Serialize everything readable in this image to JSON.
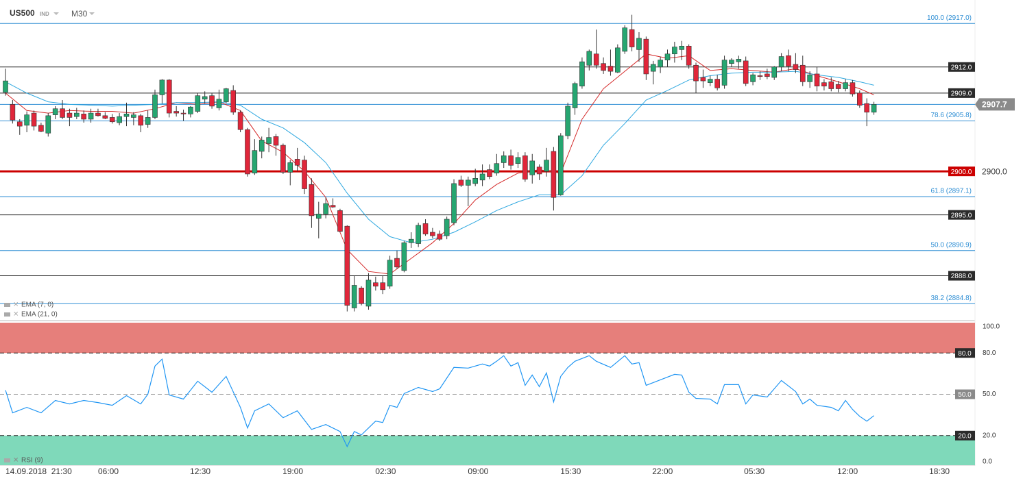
{
  "header": {
    "symbol": "US500",
    "kind": "IND",
    "timeframe": "M30"
  },
  "chart_data": {
    "type": "candlestick",
    "xlim": [
      -0.77,
      136.2
    ],
    "xticks": [
      {
        "value": 0,
        "label": "14.09.2018  21:30"
      },
      {
        "value": 14.45,
        "label": "06:00"
      },
      {
        "value": 27.36,
        "label": "12:30"
      },
      {
        "value": 40.37,
        "label": "19:00"
      },
      {
        "value": 53.4,
        "label": "02:30"
      },
      {
        "value": 66.4,
        "label": "09:00"
      },
      {
        "value": 79.4,
        "label": "15:30"
      },
      {
        "value": 92.3,
        "label": "22:00"
      },
      {
        "value": 105.2,
        "label": "05:30"
      },
      {
        "value": 118.3,
        "label": "12:00"
      },
      {
        "value": 131.2,
        "label": "18:30"
      }
    ],
    "ylim": [
      2883,
      2919.7
    ],
    "yticks": [
      {
        "value": 2900,
        "label": "2900.0"
      }
    ],
    "up_color": "#26a671",
    "down_color": "#e0263a",
    "last": 2907.7,
    "levels": [
      {
        "value": 2917,
        "label": "100.0 (2917.0)",
        "color": "#2e8ed4",
        "boxed": false
      },
      {
        "value": 2912,
        "label": "2912.0",
        "color": "#222222",
        "boxed": true
      },
      {
        "value": 2909,
        "label": "2909.0",
        "color": "#222222",
        "boxed": true
      },
      {
        "value": 2905.8,
        "label": "78.6 (2905.8)",
        "color": "#2e8ed4",
        "boxed": false
      },
      {
        "value": 2900,
        "label": "2900.0",
        "color": "#cc0000",
        "boxed": true
      },
      {
        "value": 2897.1,
        "label": "61.8 (2897.1)",
        "color": "#2e8ed4",
        "boxed": false
      },
      {
        "value": 2895,
        "label": "2895.0",
        "color": "#222222",
        "boxed": true
      },
      {
        "value": 2890.9,
        "label": "50.0 (2890.9)",
        "color": "#2e8ed4",
        "boxed": false
      },
      {
        "value": 2888,
        "label": "2888.0",
        "color": "#222222",
        "boxed": true
      },
      {
        "value": 2884.8,
        "label": "38.2 (2884.8)",
        "color": "#2e8ed4",
        "boxed": false
      }
    ],
    "candles": [
      [
        2909.1,
        2911.8,
        2908.7,
        2910.4
      ],
      [
        2907.7,
        2908.2,
        2905.5,
        2905.9
      ],
      [
        2905.7,
        2906,
        2904.2,
        2905.2
      ],
      [
        2905.3,
        2906.9,
        2904.5,
        2906.5
      ],
      [
        2906.7,
        2907,
        2904.7,
        2905.2
      ],
      [
        2905.3,
        2905.6,
        2904.5,
        2904.6
      ],
      [
        2904.4,
        2906.7,
        2904,
        2906.4
      ],
      [
        2906.5,
        2907.5,
        2906,
        2907.2
      ],
      [
        2907.2,
        2908.2,
        2906,
        2906.2
      ],
      [
        2906.7,
        2907.2,
        2905.2,
        2906.2
      ],
      [
        2906.3,
        2907.3,
        2906,
        2906.7
      ],
      [
        2906.6,
        2907,
        2905.6,
        2906
      ],
      [
        2906,
        2907.2,
        2905.6,
        2906.7
      ],
      [
        2906.7,
        2907.2,
        2906.3,
        2906.4
      ],
      [
        2906.4,
        2906.8,
        2906,
        2906.1
      ],
      [
        2906.2,
        2906.6,
        2905.5,
        2905.7
      ],
      [
        2905.6,
        2906.7,
        2905.3,
        2906.3
      ],
      [
        2906.3,
        2907.9,
        2905.2,
        2906.6
      ],
      [
        2906.2,
        2906.8,
        2905.3,
        2906.5
      ],
      [
        2906.4,
        2906.6,
        2904.5,
        2905.3
      ],
      [
        2905.4,
        2907,
        2905,
        2906.2
      ],
      [
        2906.2,
        2909.4,
        2906,
        2908.8
      ],
      [
        2908.8,
        2910.6,
        2907.8,
        2910.5
      ],
      [
        2910.5,
        2910.6,
        2906.2,
        2906.7
      ],
      [
        2906.9,
        2907.5,
        2906.3,
        2906.7
      ],
      [
        2906.7,
        2907.1,
        2905.8,
        2906.6
      ],
      [
        2906.6,
        2907.5,
        2906.2,
        2907.4
      ],
      [
        2906.9,
        2909,
        2906.7,
        2908.7
      ],
      [
        2908.3,
        2909.2,
        2907.8,
        2908.6
      ],
      [
        2908.7,
        2909,
        2907.2,
        2907.5
      ],
      [
        2907.3,
        2909.4,
        2907,
        2908.3
      ],
      [
        2908,
        2909.6,
        2907.8,
        2909.5
      ],
      [
        2909.3,
        2909.9,
        2906.5,
        2906.8
      ],
      [
        2906.8,
        2907,
        2904.5,
        2904.8
      ],
      [
        2904.8,
        2905,
        2899.4,
        2899.7
      ],
      [
        2899.8,
        2903.7,
        2899.6,
        2902.4
      ],
      [
        2902.3,
        2904,
        2901.5,
        2903.6
      ],
      [
        2903.2,
        2905,
        2902.2,
        2903.9
      ],
      [
        2904,
        2904.3,
        2901.8,
        2903
      ],
      [
        2903,
        2903.2,
        2899.7,
        2899.9
      ],
      [
        2899.9,
        2901.3,
        2898.4,
        2901
      ],
      [
        2901.4,
        2902.7,
        2900,
        2900.7
      ],
      [
        2901.3,
        2901.8,
        2897.4,
        2898
      ],
      [
        2898.5,
        2899.2,
        2893.5,
        2894.9
      ],
      [
        2894.6,
        2896.5,
        2892.3,
        2895.1
      ],
      [
        2895.1,
        2897,
        2894.6,
        2896.3
      ],
      [
        2896.1,
        2896.9,
        2895.8,
        2895.9
      ],
      [
        2895.5,
        2895.7,
        2893,
        2893.1
      ],
      [
        2893.7,
        2893.8,
        2883.9,
        2884.6
      ],
      [
        2884.3,
        2888,
        2883.9,
        2886.9
      ],
      [
        2886.6,
        2886.8,
        2884.6,
        2884.8
      ],
      [
        2884.5,
        2888.3,
        2884.1,
        2887.5
      ],
      [
        2887.2,
        2887.9,
        2886.3,
        2886.8
      ],
      [
        2887.2,
        2888,
        2885.9,
        2886.4
      ],
      [
        2886.8,
        2890.3,
        2886.5,
        2889.8
      ],
      [
        2890,
        2890.9,
        2888.8,
        2889
      ],
      [
        2888.6,
        2892,
        2888.4,
        2891.8
      ],
      [
        2891.8,
        2893,
        2891.2,
        2892.2
      ],
      [
        2891.7,
        2894.1,
        2891.3,
        2893.8
      ],
      [
        2894,
        2894.5,
        2892.6,
        2892.8
      ],
      [
        2893,
        2893.5,
        2892.3,
        2892.6
      ],
      [
        2892.8,
        2893.2,
        2892,
        2892.2
      ],
      [
        2892.6,
        2894.8,
        2892.2,
        2894.5
      ],
      [
        2894.1,
        2899.1,
        2893.8,
        2898.6
      ],
      [
        2899,
        2899.5,
        2898.2,
        2898.4
      ],
      [
        2898.4,
        2899.4,
        2896,
        2899
      ],
      [
        2898.6,
        2900.3,
        2898.3,
        2899.2
      ],
      [
        2899,
        2900.8,
        2898.3,
        2899.7
      ],
      [
        2900.2,
        2900.8,
        2899.1,
        2899.4
      ],
      [
        2899.8,
        2902,
        2899.5,
        2900.9
      ],
      [
        2901,
        2902.3,
        2900.4,
        2901.8
      ],
      [
        2901.8,
        2902.5,
        2900.2,
        2900.7
      ],
      [
        2900.9,
        2902.2,
        2900.4,
        2901.6
      ],
      [
        2901.8,
        2902.2,
        2898.8,
        2899.1
      ],
      [
        2899.6,
        2902,
        2898.6,
        2901.2
      ],
      [
        2900.5,
        2900.8,
        2899,
        2899.7
      ],
      [
        2900,
        2902.7,
        2899.4,
        2901.3
      ],
      [
        2902.3,
        2902.8,
        2895.5,
        2897
      ],
      [
        2897.3,
        2904.4,
        2897.2,
        2904.1
      ],
      [
        2904.1,
        2907.9,
        2903.7,
        2907.5
      ],
      [
        2907.3,
        2910.3,
        2906.5,
        2910.1
      ],
      [
        2909.8,
        2913.1,
        2909.5,
        2912.6
      ],
      [
        2912.2,
        2914,
        2911.6,
        2913.8
      ],
      [
        2913.5,
        2916.3,
        2911.8,
        2912.2
      ],
      [
        2912.4,
        2913.1,
        2911.2,
        2911.6
      ],
      [
        2912.1,
        2914,
        2911,
        2911.5
      ],
      [
        2911.4,
        2914.6,
        2911.3,
        2914.2
      ],
      [
        2913.8,
        2916.8,
        2913.5,
        2916.5
      ],
      [
        2916.3,
        2918,
        2913.8,
        2914.3
      ],
      [
        2914,
        2916,
        2912.6,
        2915.3
      ],
      [
        2915.2,
        2915.5,
        2910.5,
        2911.2
      ],
      [
        2911.5,
        2912.7,
        2910,
        2912.3
      ],
      [
        2912,
        2913.2,
        2911.3,
        2912.8
      ],
      [
        2912.8,
        2914,
        2912,
        2913.5
      ],
      [
        2913.5,
        2914.9,
        2912.5,
        2914.3
      ],
      [
        2914,
        2915,
        2912.8,
        2914.4
      ],
      [
        2914.4,
        2914.6,
        2911.8,
        2912.2
      ],
      [
        2912.2,
        2912.5,
        2909,
        2910.4
      ],
      [
        2910.8,
        2911.7,
        2909.6,
        2910.4
      ],
      [
        2910.2,
        2911,
        2909.8,
        2910.6
      ],
      [
        2910.6,
        2911.1,
        2909.3,
        2909.6
      ],
      [
        2909.9,
        2913.3,
        2909.5,
        2912.8
      ],
      [
        2912.4,
        2913,
        2912,
        2912.8
      ],
      [
        2912.6,
        2913.3,
        2911.8,
        2912.9
      ],
      [
        2912.7,
        2913.2,
        2909.8,
        2910.1
      ],
      [
        2910.3,
        2911.3,
        2909.9,
        2911.1
      ],
      [
        2911,
        2911.5,
        2910.5,
        2910.9
      ],
      [
        2911.2,
        2911.8,
        2910.6,
        2910.9
      ],
      [
        2910.8,
        2912.1,
        2910.5,
        2912
      ],
      [
        2912,
        2913.6,
        2911.5,
        2913.2
      ],
      [
        2913.3,
        2914,
        2911.5,
        2912.1
      ],
      [
        2912.3,
        2913.6,
        2911.3,
        2911.7
      ],
      [
        2912.2,
        2913.3,
        2909.8,
        2910.3
      ],
      [
        2910.3,
        2911.5,
        2909.6,
        2911.1
      ],
      [
        2911.2,
        2912,
        2909.2,
        2909.8
      ],
      [
        2910.2,
        2910.6,
        2909.3,
        2909.8
      ],
      [
        2910.3,
        2910.8,
        2909.2,
        2909.5
      ],
      [
        2910,
        2910.4,
        2909.1,
        2909.5
      ],
      [
        2909.5,
        2910.6,
        2909.2,
        2910.2
      ],
      [
        2910.2,
        2910.5,
        2908.6,
        2908.9
      ],
      [
        2909,
        2909.3,
        2907.3,
        2907.6
      ],
      [
        2907.8,
        2908.4,
        2905.2,
        2906.8
      ],
      [
        2906.8,
        2908,
        2906.5,
        2907.7
      ]
    ],
    "indicators": [
      {
        "name": "EMA (7, 0)",
        "color": "#d42a2a",
        "x": [
          0,
          3,
          6,
          9,
          12,
          15,
          18,
          21,
          24,
          27,
          30,
          33,
          36,
          39,
          42,
          45,
          48,
          51,
          54,
          57,
          60,
          63,
          66,
          69,
          72,
          75,
          78,
          81,
          84,
          87,
          90,
          93,
          96,
          99,
          102,
          105,
          108,
          111,
          114,
          117,
          120,
          122
        ],
        "values": [
          2909,
          2907,
          2906.7,
          2907,
          2906.9,
          2906.9,
          2906.7,
          2907.2,
          2907.9,
          2907.7,
          2908,
          2907,
          2903.5,
          2902.2,
          2900,
          2897,
          2891,
          2888.5,
          2888.2,
          2890,
          2891.8,
          2894,
          2896.7,
          2898.5,
          2899.8,
          2900.2,
          2899.8,
          2906,
          2909.5,
          2911.5,
          2913.5,
          2913,
          2913.3,
          2911.6,
          2911.8,
          2911.6,
          2911.4,
          2911.8,
          2911,
          2910.3,
          2909.5,
          2908.8
        ]
      },
      {
        "name": "EMA (21, 0)",
        "color": "#2fa8e0",
        "x": [
          0,
          3,
          6,
          9,
          12,
          15,
          18,
          21,
          24,
          27,
          30,
          33,
          36,
          39,
          42,
          45,
          48,
          51,
          54,
          57,
          60,
          63,
          66,
          69,
          72,
          75,
          78,
          81,
          84,
          87,
          90,
          93,
          96,
          99,
          102,
          105,
          108,
          111,
          114,
          117,
          120,
          122
        ],
        "values": [
          2910.3,
          2909,
          2908,
          2907.7,
          2907.6,
          2907.5,
          2907.6,
          2907.7,
          2907.9,
          2907.9,
          2908,
          2907.6,
          2906,
          2905,
          2903.3,
          2901,
          2897.5,
          2894.5,
          2892.5,
          2891.8,
          2892.2,
          2893,
          2894.2,
          2895.5,
          2896.5,
          2897.3,
          2897.3,
          2899.5,
          2903,
          2905.5,
          2908.2,
          2909.3,
          2910.5,
          2911,
          2911.3,
          2911.4,
          2911.4,
          2911.5,
          2911.1,
          2910.8,
          2910.3,
          2909.9
        ]
      }
    ],
    "rsi": {
      "name": "RSI (9)",
      "color": "#2196f3",
      "ylim": [
        0,
        100
      ],
      "yticks": [
        {
          "value": 100,
          "label": "100.0"
        },
        {
          "value": 80,
          "label": "80.0"
        },
        {
          "value": 50,
          "label": "50.0"
        },
        {
          "value": 20,
          "label": "20.0"
        },
        {
          "value": 0,
          "label": "0.0"
        }
      ],
      "bands": [
        {
          "from": 80,
          "to": 100,
          "color": "#e67f7b"
        },
        {
          "from": 0,
          "to": 20,
          "color": "#7fd9ba"
        }
      ],
      "x": [
        0,
        1,
        3,
        5,
        7,
        9,
        11,
        13,
        15,
        17,
        19,
        20,
        21,
        22,
        23,
        25,
        27,
        29,
        31,
        33,
        34,
        35,
        37,
        39,
        41,
        43,
        45,
        47,
        48,
        49,
        50,
        52,
        53,
        54,
        55,
        56,
        58,
        60,
        61,
        63,
        65,
        67,
        68,
        69,
        70,
        71,
        72,
        73,
        74,
        75,
        76,
        77,
        78,
        79,
        80,
        82,
        83,
        85,
        87,
        88,
        89,
        90,
        92,
        94,
        95,
        96,
        97,
        99,
        100,
        101,
        103,
        104,
        105,
        107,
        109,
        111,
        112,
        113,
        114,
        116,
        117,
        118,
        119,
        120,
        121,
        122
      ],
      "values": [
        53,
        36.5,
        40.5,
        36.5,
        45.5,
        43,
        45.5,
        44,
        42,
        49,
        43,
        50,
        70.5,
        75.5,
        49.5,
        46.5,
        59.5,
        51.5,
        63,
        40.5,
        25.5,
        38,
        43,
        33,
        38,
        24.5,
        28,
        23,
        12,
        23,
        20.5,
        30.5,
        29.5,
        42,
        40.5,
        50.5,
        55,
        52,
        54,
        69.5,
        69,
        72,
        70.5,
        74,
        78,
        70.5,
        73,
        56.5,
        64,
        55.5,
        65.5,
        44.5,
        63,
        69.5,
        74,
        78,
        74,
        69.5,
        78,
        72,
        73,
        56.5,
        60.5,
        64.5,
        64,
        51.5,
        47,
        46.5,
        43,
        57,
        57,
        43,
        49.5,
        48,
        60,
        52,
        43,
        46.5,
        42,
        40.5,
        38,
        45.5,
        39,
        34,
        30.5,
        34.5
      ]
    }
  }
}
